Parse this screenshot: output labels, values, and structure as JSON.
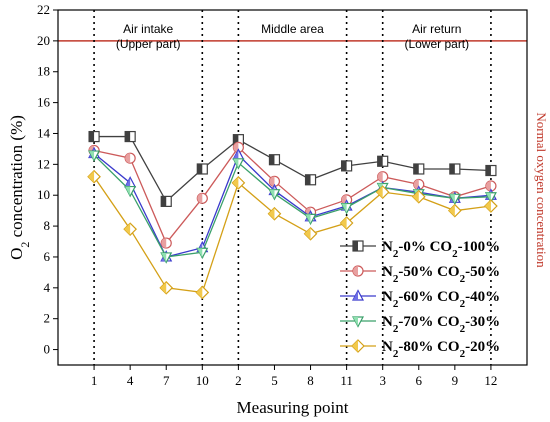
{
  "chart_data": {
    "type": "line",
    "xlabel": "Measuring point",
    "ylabel_main": "O",
    "ylabel_sub": "2",
    "ylabel_rest": " concentration (%)",
    "categories": [
      "1",
      "4",
      "7",
      "10",
      "2",
      "5",
      "8",
      "11",
      "3",
      "6",
      "9",
      "12"
    ],
    "ylim": [
      -1,
      22
    ],
    "yticks": [
      0,
      2,
      4,
      6,
      8,
      10,
      12,
      14,
      16,
      18,
      20,
      22
    ],
    "grid": false,
    "legend_position": "bottom-right",
    "reference_line": {
      "value": 20,
      "label": "Normal oxygen concentration",
      "color": "#c0392b"
    },
    "regions": [
      {
        "line1": "Air intake",
        "line2": "(Upper part)",
        "from": 0,
        "to": 3
      },
      {
        "line1": "Middle area",
        "line2": "",
        "from": 4,
        "to": 7
      },
      {
        "line1": "Air return",
        "line2": "(Lower part)",
        "from": 8,
        "to": 11
      }
    ],
    "series": [
      {
        "name": "N2-0% CO2-100%",
        "n2": "0%",
        "co2": "100%",
        "marker": "square",
        "color": "#404040",
        "fill": "#ffffff",
        "values": [
          13.8,
          13.8,
          9.6,
          11.7,
          13.6,
          12.3,
          11.0,
          11.9,
          12.2,
          11.7,
          11.7,
          11.6
        ]
      },
      {
        "name": "N2-50% CO2-50%",
        "n2": "50%",
        "co2": "50%",
        "marker": "circle",
        "color": "#cc5a5a",
        "fill": "#e8a0a0",
        "values": [
          12.9,
          12.4,
          6.9,
          9.8,
          13.1,
          10.9,
          8.9,
          9.7,
          11.2,
          10.7,
          9.9,
          10.6
        ]
      },
      {
        "name": "N2-60% CO2-40%",
        "n2": "60%",
        "co2": "40%",
        "marker": "triangle-up",
        "color": "#3a3acc",
        "fill": "#6f6fe6",
        "values": [
          12.7,
          10.8,
          6.0,
          6.6,
          12.6,
          10.3,
          8.6,
          9.3,
          10.5,
          10.2,
          9.8,
          10.0
        ]
      },
      {
        "name": "N2-70% CO2-30%",
        "n2": "70%",
        "co2": "30%",
        "marker": "triangle-down",
        "color": "#3aa06a",
        "fill": "#8fe0b0",
        "values": [
          12.6,
          10.3,
          6.0,
          6.3,
          12.1,
          10.1,
          8.5,
          9.2,
          10.5,
          10.1,
          9.8,
          9.9
        ]
      },
      {
        "name": "N2-80% CO2-20%",
        "n2": "80%",
        "co2": "20%",
        "marker": "diamond",
        "color": "#d4a017",
        "fill": "#f2c94c",
        "values": [
          11.2,
          7.8,
          4.0,
          3.7,
          10.8,
          8.8,
          7.5,
          8.2,
          10.2,
          9.9,
          9.0,
          9.3
        ]
      }
    ]
  }
}
